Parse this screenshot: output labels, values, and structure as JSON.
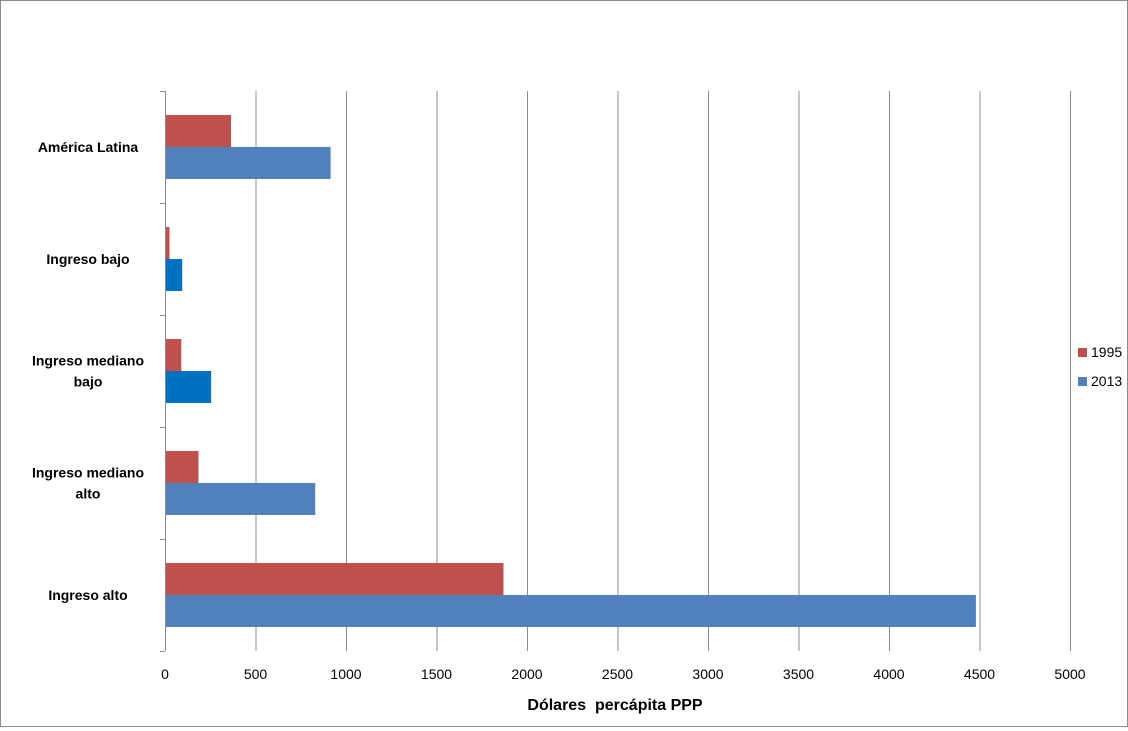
{
  "chart_data": {
    "type": "bar",
    "orientation": "horizontal",
    "title": "",
    "xlabel": "Dólares  percápita PPP",
    "ylabel": "",
    "xlim": [
      0,
      5000
    ],
    "x_ticks": [
      0,
      500,
      1000,
      1500,
      2000,
      2500,
      3000,
      3500,
      4000,
      4500,
      5000
    ],
    "grid": "vertical",
    "legend_position": "right",
    "categories": [
      [
        "América Latina"
      ],
      [
        "Ingreso bajo"
      ],
      [
        "Ingreso mediano",
        "bajo"
      ],
      [
        "Ingreso mediano",
        "alto"
      ],
      [
        "Ingreso alto"
      ]
    ],
    "series": [
      {
        "name": "1995",
        "color": "#c0504d",
        "values": [
          365,
          25,
          90,
          185,
          1870
        ],
        "bar_colors": [
          "#c0504d",
          "#c0504d",
          "#c0504d",
          "#c0504d",
          "#c0504d"
        ]
      },
      {
        "name": "2013",
        "color": "#4f81bd",
        "values": [
          915,
          95,
          255,
          830,
          4480
        ],
        "bar_colors": [
          "#4f81bd",
          "#0070c0",
          "#0070c0",
          "#4f81bd",
          "#4f81bd"
        ]
      }
    ],
    "gridline_color": "#8c8c8c",
    "axis_color": "#8c8c8c",
    "text_color": "#000000"
  }
}
